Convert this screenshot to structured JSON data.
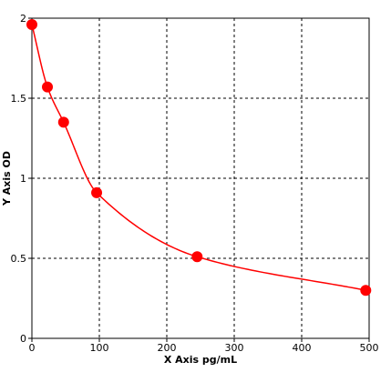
{
  "chart_data": {
    "type": "scatter",
    "title": "",
    "xlabel": "X Axis pg/mL",
    "ylabel": "Y Axis OD",
    "xlim": [
      0,
      500
    ],
    "ylim": [
      0,
      2
    ],
    "xticks": [
      0,
      100,
      200,
      300,
      400,
      500
    ],
    "xtick_labels": [
      "0",
      "100",
      "200",
      "300",
      "400",
      "500"
    ],
    "yticks": [
      0,
      0.5,
      1,
      1.5,
      2
    ],
    "ytick_labels": [
      "0",
      "0.5",
      "1",
      "1.5",
      "2"
    ],
    "grid": true,
    "grid_style": "dashed",
    "series": [
      {
        "color": "#ff0000",
        "marker": "circle",
        "line": "smooth fitted curve",
        "x": [
          0,
          23,
          47,
          96,
          245,
          495
        ],
        "y": [
          1.96,
          1.57,
          1.35,
          0.91,
          0.51,
          0.3
        ]
      }
    ]
  }
}
